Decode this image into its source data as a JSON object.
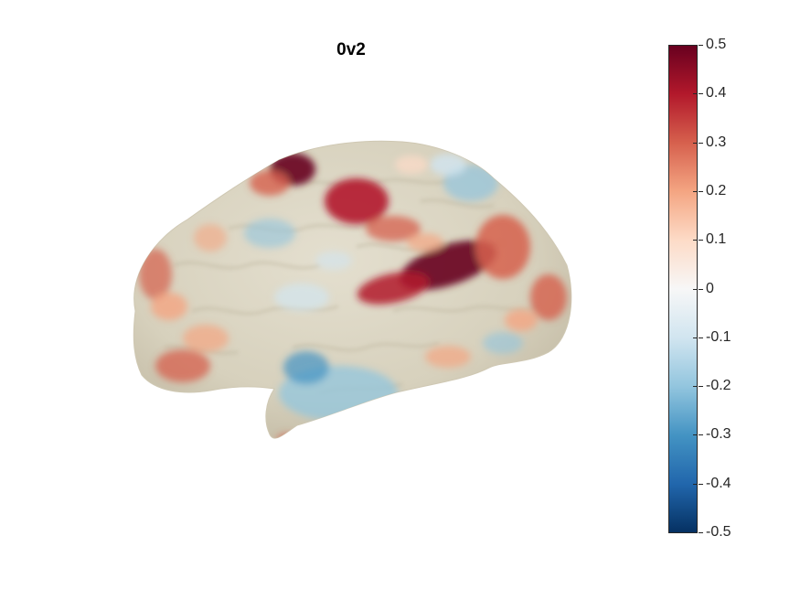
{
  "figure": {
    "title": "0v2"
  },
  "colorbar": {
    "colormap": [
      "#67001f",
      "#b2182b",
      "#d6604d",
      "#f4a582",
      "#fddbc7",
      "#f7f7f7",
      "#d1e5f0",
      "#92c5de",
      "#4393c3",
      "#2166ac",
      "#053061"
    ],
    "ticks": [
      "0.5",
      "0.4",
      "0.3",
      "0.2",
      "0.1",
      "0",
      "-0.1",
      "-0.2",
      "-0.3",
      "-0.4",
      "-0.5"
    ],
    "range": [
      -0.5,
      0.5
    ]
  },
  "surface": {
    "base_color": "#d9d3c0",
    "view": "lateral left hemisphere"
  }
}
